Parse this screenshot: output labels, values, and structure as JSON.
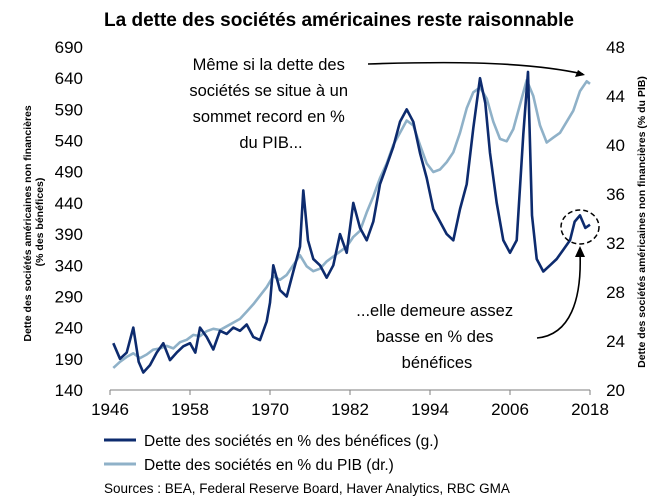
{
  "chart_data": {
    "type": "line",
    "title": "La dette des sociétés américaines reste raisonnable",
    "ylabel_left": "Dette des sociétés américaines non financières (% des bénéfices)",
    "ylabel_right": "Dette des sociétés américaines non financières (% du PIB)",
    "xlim": [
      1946,
      2018
    ],
    "x_ticks": [
      "1946",
      "1958",
      "1970",
      "1982",
      "1994",
      "2006",
      "2018"
    ],
    "ylim_left": [
      140,
      690
    ],
    "y_ticks_left": [
      "140",
      "190",
      "240",
      "290",
      "340",
      "390",
      "440",
      "490",
      "540",
      "590",
      "640",
      "690"
    ],
    "ylim_right": [
      20,
      48
    ],
    "y_ticks_right": [
      "20",
      "24",
      "28",
      "32",
      "36",
      "40",
      "44",
      "48"
    ],
    "grid": false,
    "legend_position": "bottom-left",
    "series": [
      {
        "name": "Dette des sociétés en % des bénéfices (g.)",
        "axis": "left",
        "color": "#0d2b6e",
        "points": [
          [
            1946.5,
            215
          ],
          [
            1947.5,
            190
          ],
          [
            1948.5,
            200
          ],
          [
            1949.5,
            240
          ],
          [
            1950.3,
            185
          ],
          [
            1951,
            168
          ],
          [
            1952,
            180
          ],
          [
            1953,
            200
          ],
          [
            1954,
            215
          ],
          [
            1955,
            188
          ],
          [
            1956,
            200
          ],
          [
            1957,
            210
          ],
          [
            1958,
            215
          ],
          [
            1958.8,
            200
          ],
          [
            1959.5,
            240
          ],
          [
            1960.5,
            225
          ],
          [
            1961.5,
            205
          ],
          [
            1962.5,
            235
          ],
          [
            1963.5,
            230
          ],
          [
            1964.5,
            240
          ],
          [
            1965.5,
            235
          ],
          [
            1966.5,
            245
          ],
          [
            1967.5,
            225
          ],
          [
            1968.5,
            220
          ],
          [
            1969.5,
            250
          ],
          [
            1970,
            280
          ],
          [
            1970.5,
            340
          ],
          [
            1971.5,
            300
          ],
          [
            1972.5,
            290
          ],
          [
            1973.5,
            330
          ],
          [
            1974.5,
            370
          ],
          [
            1975,
            460
          ],
          [
            1975.7,
            380
          ],
          [
            1976.5,
            350
          ],
          [
            1977.5,
            340
          ],
          [
            1978.5,
            320
          ],
          [
            1979.5,
            340
          ],
          [
            1980.5,
            390
          ],
          [
            1981.5,
            360
          ],
          [
            1982.5,
            440
          ],
          [
            1983.5,
            400
          ],
          [
            1984.5,
            380
          ],
          [
            1985.5,
            410
          ],
          [
            1986.5,
            470
          ],
          [
            1987.5,
            500
          ],
          [
            1988.5,
            530
          ],
          [
            1989.5,
            570
          ],
          [
            1990.5,
            590
          ],
          [
            1991.5,
            570
          ],
          [
            1992.5,
            520
          ],
          [
            1993.5,
            480
          ],
          [
            1994.5,
            430
          ],
          [
            1995.5,
            410
          ],
          [
            1996.5,
            390
          ],
          [
            1997.5,
            380
          ],
          [
            1998.5,
            430
          ],
          [
            1999.5,
            470
          ],
          [
            2000.5,
            560
          ],
          [
            2001.5,
            640
          ],
          [
            2002.3,
            600
          ],
          [
            2003,
            520
          ],
          [
            2004,
            440
          ],
          [
            2005,
            380
          ],
          [
            2006,
            360
          ],
          [
            2007,
            380
          ],
          [
            2008,
            550
          ],
          [
            2008.7,
            650
          ],
          [
            2009.3,
            420
          ],
          [
            2010,
            350
          ],
          [
            2011,
            330
          ],
          [
            2012,
            340
          ],
          [
            2013,
            350
          ],
          [
            2014,
            365
          ],
          [
            2015,
            380
          ],
          [
            2015.7,
            410
          ],
          [
            2016.5,
            420
          ],
          [
            2017.3,
            400
          ],
          [
            2018,
            405
          ]
        ]
      },
      {
        "name": "Dette des sociétés en % du PIB (dr.)",
        "axis": "right",
        "color": "#8fb1c8",
        "points": [
          [
            1946.5,
            21.8
          ],
          [
            1947.5,
            22.3
          ],
          [
            1948.5,
            22.7
          ],
          [
            1949.5,
            23.0
          ],
          [
            1950.5,
            22.6
          ],
          [
            1951.5,
            22.9
          ],
          [
            1952.5,
            23.3
          ],
          [
            1953.5,
            23.4
          ],
          [
            1954.5,
            23.6
          ],
          [
            1955.5,
            23.4
          ],
          [
            1956.5,
            23.9
          ],
          [
            1957.5,
            24.1
          ],
          [
            1958.5,
            24.5
          ],
          [
            1959.5,
            24.4
          ],
          [
            1960.5,
            24.8
          ],
          [
            1961.5,
            25.0
          ],
          [
            1962.5,
            24.9
          ],
          [
            1963.5,
            25.2
          ],
          [
            1964.5,
            25.5
          ],
          [
            1965.5,
            25.8
          ],
          [
            1966.5,
            26.4
          ],
          [
            1967.5,
            27.0
          ],
          [
            1968.5,
            27.7
          ],
          [
            1969.5,
            28.4
          ],
          [
            1970.5,
            29.3
          ],
          [
            1971.5,
            29.0
          ],
          [
            1972.5,
            29.4
          ],
          [
            1973.5,
            30.2
          ],
          [
            1974.5,
            31.0
          ],
          [
            1975.5,
            30.1
          ],
          [
            1976.5,
            29.7
          ],
          [
            1977.5,
            29.9
          ],
          [
            1978.5,
            30.5
          ],
          [
            1979.5,
            30.9
          ],
          [
            1980.5,
            31.3
          ],
          [
            1981.5,
            31.7
          ],
          [
            1982.5,
            32.5
          ],
          [
            1983.5,
            33.0
          ],
          [
            1984.5,
            34.5
          ],
          [
            1985.5,
            35.8
          ],
          [
            1986.5,
            37.3
          ],
          [
            1987.5,
            38.5
          ],
          [
            1988.5,
            40.0
          ],
          [
            1989.5,
            41.0
          ],
          [
            1990.5,
            42.0
          ],
          [
            1991.5,
            41.6
          ],
          [
            1992.5,
            40.0
          ],
          [
            1993.5,
            38.5
          ],
          [
            1994.5,
            37.8
          ],
          [
            1995.5,
            38.0
          ],
          [
            1996.5,
            38.6
          ],
          [
            1997.5,
            39.4
          ],
          [
            1998.5,
            41.0
          ],
          [
            1999.5,
            43.0
          ],
          [
            2000.5,
            44.3
          ],
          [
            2001.5,
            44.7
          ],
          [
            2002.5,
            43.8
          ],
          [
            2003.5,
            41.9
          ],
          [
            2004.5,
            40.5
          ],
          [
            2005.5,
            40.3
          ],
          [
            2006.5,
            41.3
          ],
          [
            2007.5,
            43.3
          ],
          [
            2008.5,
            45.3
          ],
          [
            2009.5,
            44.0
          ],
          [
            2010.5,
            41.6
          ],
          [
            2011.5,
            40.2
          ],
          [
            2012.5,
            40.6
          ],
          [
            2013.5,
            41.0
          ],
          [
            2014.5,
            41.9
          ],
          [
            2015.5,
            42.8
          ],
          [
            2016.5,
            44.4
          ],
          [
            2017.5,
            45.2
          ],
          [
            2018,
            45.0
          ]
        ]
      }
    ],
    "annotations": [
      {
        "lines": [
          "Même si la dette des",
          "sociétés se situe à un",
          "sommet record en %",
          "du PIB..."
        ]
      },
      {
        "lines": [
          "...elle demeure assez",
          "basse en % des",
          "bénéfices"
        ]
      }
    ],
    "legend": [
      "Dette des sociétés en % des bénéfices (g.)",
      "Dette des sociétés en % du PIB (dr.)"
    ],
    "source": "Sources : BEA, Federal Reserve Board, Haver Analytics, RBC GMA"
  }
}
